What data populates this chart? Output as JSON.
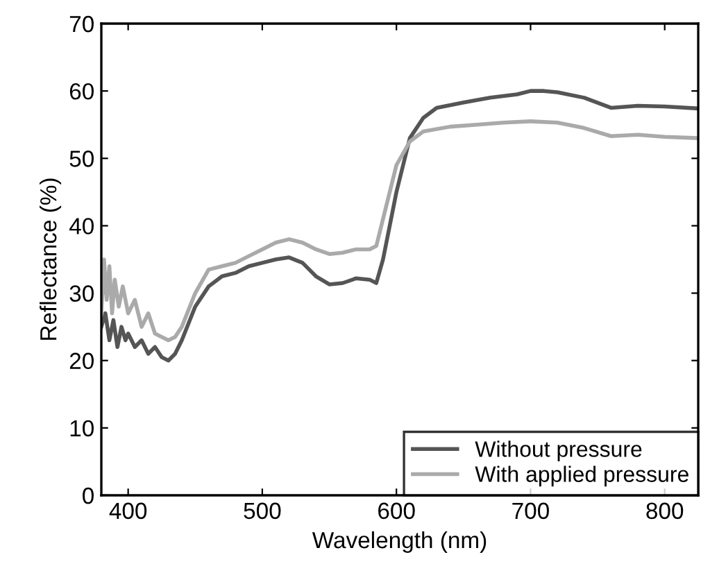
{
  "chart_data": {
    "type": "line",
    "xlabel": "Wavelength (nm)",
    "ylabel": "Reflectance (%)",
    "xlim": [
      380,
      825
    ],
    "ylim": [
      0,
      70
    ],
    "xticks": [
      400,
      500,
      600,
      700,
      800
    ],
    "yticks": [
      0,
      10,
      20,
      30,
      40,
      50,
      60,
      70
    ],
    "grid": false,
    "legend": "bottom right",
    "marker": "none",
    "line_style": "solid",
    "series": [
      {
        "name": "Without pressure",
        "color": "#555555",
        "x": [
          380,
          383,
          386,
          389,
          392,
          395,
          398,
          400,
          405,
          410,
          415,
          420,
          425,
          430,
          435,
          440,
          450,
          460,
          470,
          480,
          490,
          500,
          510,
          520,
          530,
          540,
          550,
          560,
          570,
          580,
          585,
          590,
          600,
          610,
          620,
          630,
          650,
          670,
          690,
          700,
          710,
          720,
          740,
          760,
          780,
          800,
          825
        ],
        "values": [
          25,
          27,
          23,
          26,
          22,
          25,
          23,
          24,
          22,
          23,
          21,
          22,
          20.5,
          20,
          21,
          23,
          28,
          31,
          32.5,
          33,
          34,
          34.5,
          35,
          35.3,
          34.5,
          32.5,
          31.3,
          31.5,
          32.2,
          32,
          31.5,
          35,
          45,
          53,
          56,
          57.5,
          58.3,
          59,
          59.5,
          60,
          60,
          59.8,
          59,
          57.5,
          57.8,
          57.7,
          57.4
        ]
      },
      {
        "name": "With applied pressure",
        "color": "#aaaaaa",
        "x": [
          380,
          382,
          384,
          386,
          388,
          390,
          393,
          396,
          400,
          405,
          410,
          415,
          420,
          425,
          430,
          435,
          440,
          450,
          460,
          470,
          480,
          490,
          500,
          510,
          520,
          530,
          540,
          550,
          560,
          570,
          580,
          585,
          590,
          600,
          610,
          620,
          640,
          660,
          680,
          700,
          720,
          740,
          760,
          780,
          800,
          825
        ],
        "values": [
          27,
          35,
          29,
          34,
          27,
          32,
          28,
          31,
          27,
          29,
          25,
          27,
          24,
          23.5,
          23,
          23.5,
          25,
          30,
          33.5,
          34,
          34.5,
          35.5,
          36.5,
          37.5,
          38,
          37.5,
          36.5,
          35.8,
          36,
          36.5,
          36.5,
          37,
          41,
          49,
          52.5,
          54,
          54.7,
          55,
          55.3,
          55.5,
          55.3,
          54.5,
          53.3,
          53.5,
          53.2,
          53
        ]
      }
    ]
  }
}
